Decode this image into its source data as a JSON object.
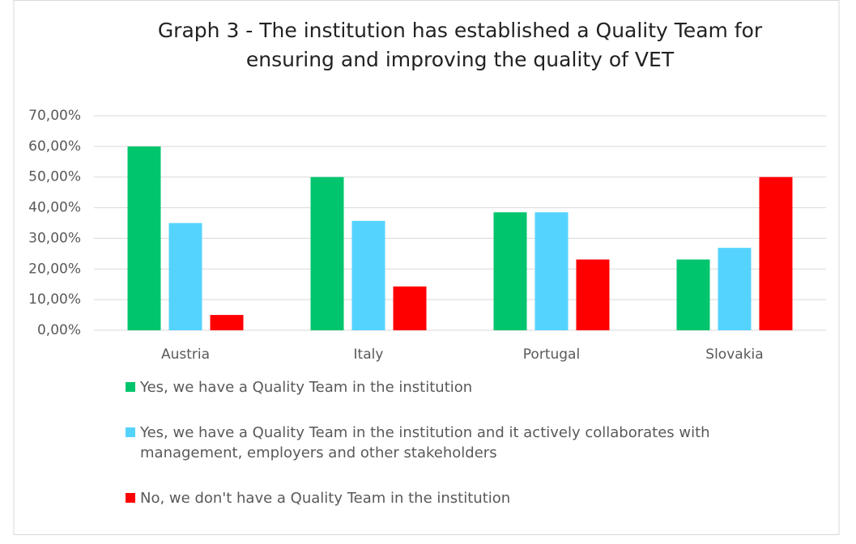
{
  "chart_data": {
    "type": "bar",
    "title": "Graph 3 - The institution has established a Quality Team for ensuring and improving the quality of VET",
    "categories": [
      "Austria",
      "Italy",
      "Portugal",
      "Slovakia"
    ],
    "series": [
      {
        "name": "Yes, we have a Quality Team in the institution",
        "color": "#00c56d",
        "values": [
          60,
          50,
          38.5,
          23.1
        ]
      },
      {
        "name": "Yes, we have a Quality Team in the institution and it actively collaborates with management, employers and other stakeholders",
        "color": "#55d3ff",
        "values": [
          35,
          35.7,
          38.5,
          26.9
        ]
      },
      {
        "name": "No, we don't have a Quality Team in the institution",
        "color": "#ff0000",
        "values": [
          5,
          14.3,
          23.1,
          50
        ]
      }
    ],
    "ylim": [
      0,
      70
    ],
    "yticks": [
      {
        "value": 0,
        "label": "0,00%"
      },
      {
        "value": 10,
        "label": "10,00%"
      },
      {
        "value": 20,
        "label": "20,00%"
      },
      {
        "value": 30,
        "label": "30,00%"
      },
      {
        "value": 40,
        "label": "40,00%"
      },
      {
        "value": 50,
        "label": "50,00%"
      },
      {
        "value": 60,
        "label": "60,00%"
      },
      {
        "value": 70,
        "label": "70,00%"
      }
    ],
    "grid": true,
    "legend": "bottom"
  }
}
